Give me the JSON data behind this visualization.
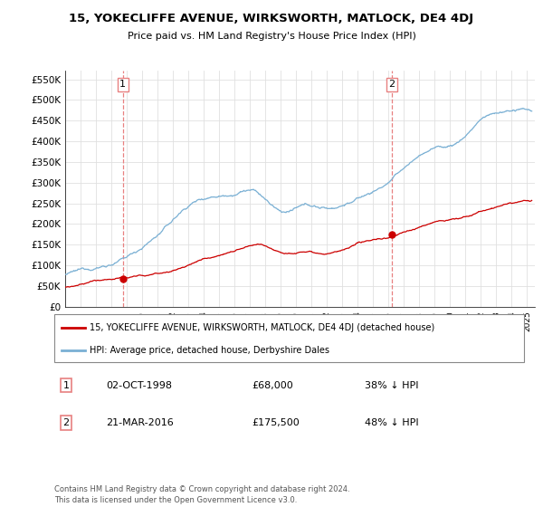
{
  "title": "15, YOKECLIFFE AVENUE, WIRKSWORTH, MATLOCK, DE4 4DJ",
  "subtitle": "Price paid vs. HM Land Registry's House Price Index (HPI)",
  "ylabel_ticks": [
    "£0",
    "£50K",
    "£100K",
    "£150K",
    "£200K",
    "£250K",
    "£300K",
    "£350K",
    "£400K",
    "£450K",
    "£500K",
    "£550K"
  ],
  "ylabel_values": [
    0,
    50000,
    100000,
    150000,
    200000,
    250000,
    300000,
    350000,
    400000,
    450000,
    500000,
    550000
  ],
  "ylim": [
    0,
    570000
  ],
  "sale1_date": 1998.75,
  "sale1_price": 68000,
  "sale1_label": "02-OCT-1998",
  "sale1_amount": "£68,000",
  "sale1_hpi": "38% ↓ HPI",
  "sale2_date": 2016.22,
  "sale2_price": 175500,
  "sale2_label": "21-MAR-2016",
  "sale2_amount": "£175,500",
  "sale2_hpi": "48% ↓ HPI",
  "legend_house": "15, YOKECLIFFE AVENUE, WIRKSWORTH, MATLOCK, DE4 4DJ (detached house)",
  "legend_hpi": "HPI: Average price, detached house, Derbyshire Dales",
  "footer": "Contains HM Land Registry data © Crown copyright and database right 2024.\nThis data is licensed under the Open Government Licence v3.0.",
  "red_color": "#cc0000",
  "blue_color": "#7ab0d4",
  "dashed_color": "#e88080",
  "background_color": "#ffffff",
  "grid_color": "#e0e0e0",
  "hpi_key_x": [
    1995,
    1996,
    1997,
    1998,
    1999,
    2000,
    2001,
    2002,
    2003,
    2004,
    2005,
    2006,
    2007,
    2008,
    2009,
    2010,
    2011,
    2012,
    2013,
    2014,
    2015,
    2016,
    2017,
    2018,
    2019,
    2020,
    2021,
    2022,
    2023,
    2024,
    2025
  ],
  "hpi_key_y": [
    78000,
    85000,
    94000,
    105000,
    120000,
    145000,
    175000,
    210000,
    245000,
    265000,
    275000,
    285000,
    295000,
    270000,
    240000,
    245000,
    248000,
    242000,
    252000,
    268000,
    285000,
    308000,
    340000,
    370000,
    390000,
    395000,
    420000,
    460000,
    475000,
    480000,
    478000
  ],
  "red_key_x": [
    1995,
    1996,
    1997,
    1998.75,
    2000,
    2001,
    2002,
    2003,
    2004,
    2005,
    2006,
    2007,
    2008,
    2009,
    2010,
    2011,
    2012,
    2013,
    2014,
    2015,
    2016.22,
    2017,
    2018,
    2019,
    2020,
    2021,
    2022,
    2023,
    2024,
    2025
  ],
  "red_key_y": [
    48000,
    52000,
    60000,
    68000,
    72000,
    78000,
    88000,
    100000,
    115000,
    128000,
    140000,
    150000,
    148000,
    138000,
    140000,
    145000,
    142000,
    148000,
    158000,
    168000,
    175500,
    188000,
    200000,
    212000,
    218000,
    225000,
    238000,
    248000,
    255000,
    258000
  ]
}
